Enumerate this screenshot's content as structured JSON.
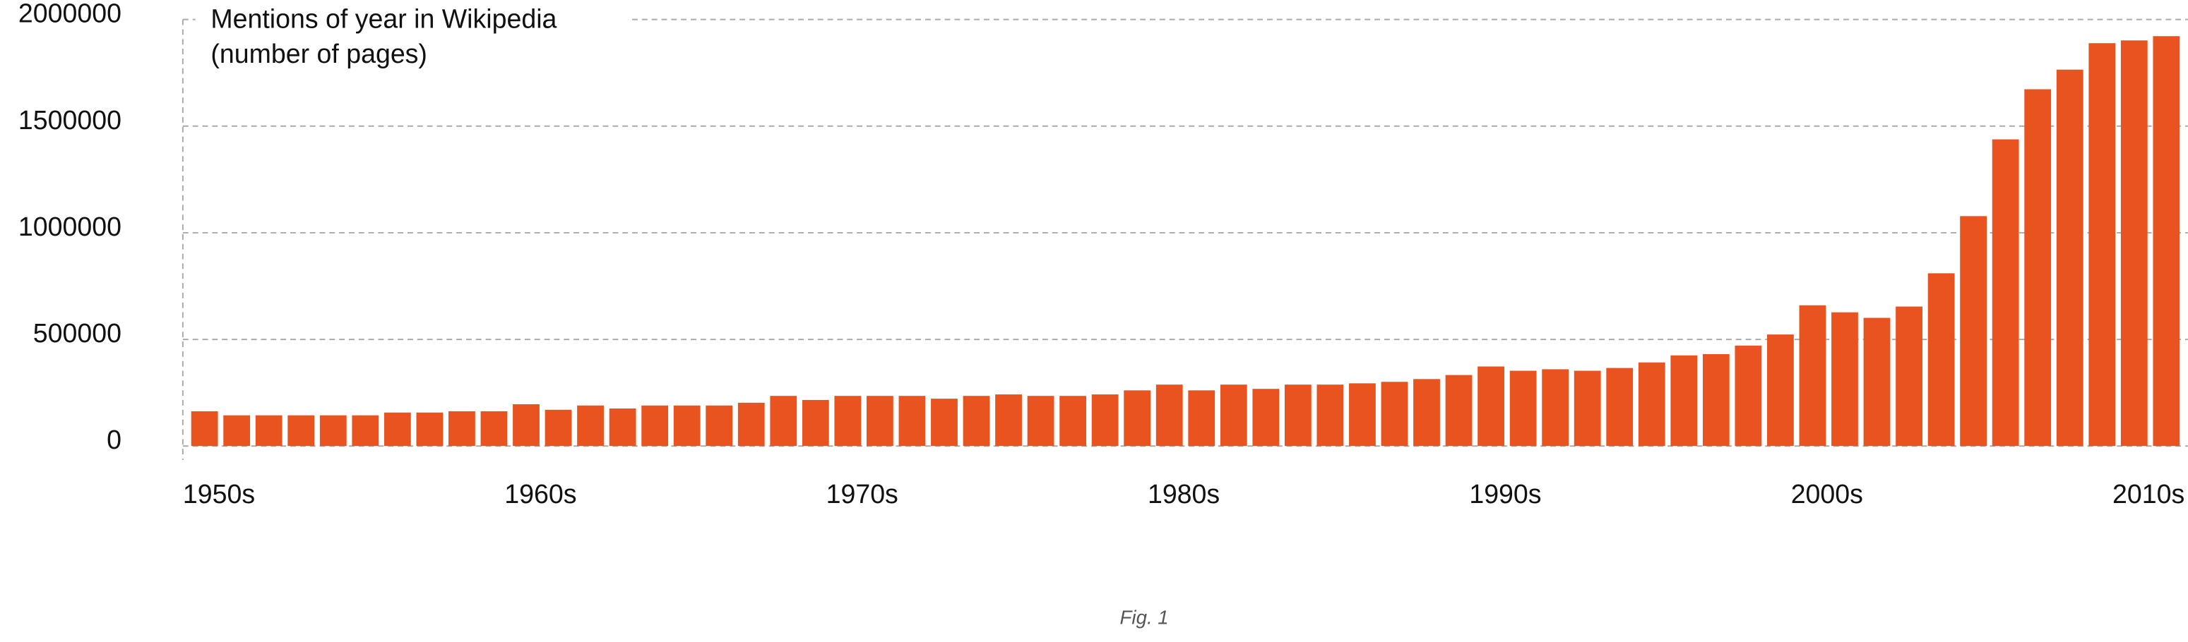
{
  "chart_data": {
    "type": "bar",
    "title": "Mentions of year in Wikipedia",
    "subtitle": "(number of pages)",
    "caption": "Fig. 1",
    "categories": [
      "1950s",
      null,
      null,
      null,
      null,
      null,
      null,
      null,
      null,
      null,
      "1960s",
      null,
      null,
      null,
      null,
      null,
      null,
      null,
      null,
      null,
      "1970s",
      null,
      null,
      null,
      null,
      null,
      null,
      null,
      null,
      null,
      "1980s",
      null,
      null,
      null,
      null,
      null,
      null,
      null,
      null,
      null,
      "1990s",
      null,
      null,
      null,
      null,
      null,
      null,
      null,
      null,
      null,
      "2000s",
      null,
      null,
      null,
      null,
      null,
      null,
      null,
      null,
      null,
      "2010s",
      null
    ],
    "values": [
      163000,
      144000,
      144000,
      144000,
      144000,
      144000,
      157000,
      157000,
      163000,
      163000,
      196000,
      170000,
      190000,
      176000,
      190000,
      190000,
      190000,
      203000,
      235000,
      216000,
      235000,
      235000,
      235000,
      222000,
      235000,
      242000,
      235000,
      235000,
      242000,
      261000,
      288000,
      261000,
      288000,
      268000,
      288000,
      288000,
      294000,
      301000,
      314000,
      333000,
      373000,
      353000,
      360000,
      353000,
      366000,
      392000,
      425000,
      431000,
      471000,
      523000,
      660000,
      627000,
      601000,
      654000,
      810000,
      1078000,
      1438000,
      1673000,
      1765000,
      1889000,
      1902000,
      1922000
    ],
    "color": "#e8531f",
    "ylim": [
      0,
      2000000
    ],
    "yticks": [
      0,
      500000,
      1000000,
      1500000,
      2000000
    ],
    "grid": true
  }
}
